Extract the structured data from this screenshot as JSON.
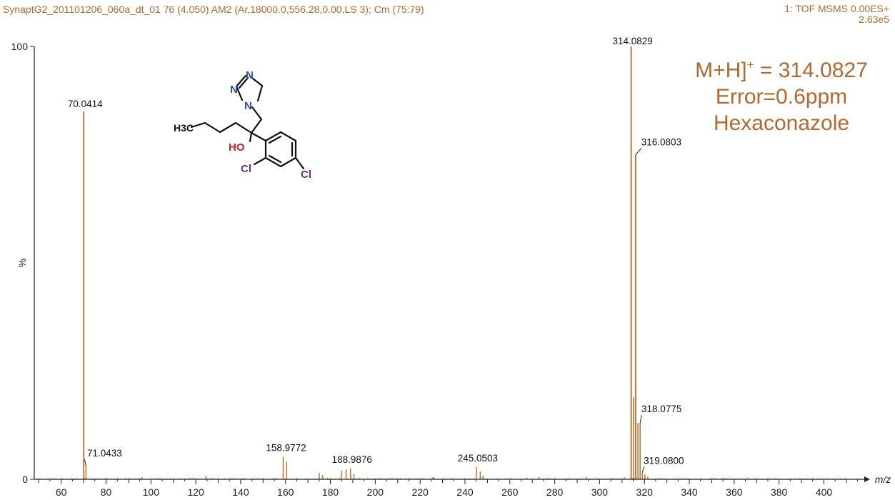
{
  "header": {
    "left_text": "SynaptG2_201101206_060a_dt_01 76 (4.050) AM2 (Ar,18000.0,556.28,0.00,LS 3); Cm (75:79)",
    "right_line1": "1: TOF MSMS 0.00ES+",
    "right_line2": "2.63e5"
  },
  "annotation": {
    "line1_main": "M+H]",
    "line1_sup": "+",
    "line1_rest": " = 314.0827",
    "line2": "Error=0.6ppm",
    "line3": "Hexaconazole"
  },
  "molecule": {
    "atoms": [
      "N",
      "N",
      "N",
      "H3C",
      "HO",
      "Cl",
      "Cl"
    ],
    "colors": {
      "nitrogen": "#2f4fb5",
      "oxygen": "#cc2222",
      "chlorine": "#6a2f8f",
      "carbon": "#111111"
    }
  },
  "colors": {
    "peak": "#c07a3e",
    "text_accent": "#b5682c",
    "axis": "#222222"
  },
  "chart_data": {
    "type": "bar",
    "title": "",
    "xlabel": "m/z",
    "ylabel": "%",
    "xlim": [
      48,
      418
    ],
    "ylim": [
      0,
      100
    ],
    "x_ticks": [
      60,
      80,
      100,
      120,
      140,
      160,
      180,
      200,
      220,
      240,
      260,
      280,
      300,
      320,
      340,
      360,
      380,
      400
    ],
    "y_ticks": [
      0,
      100
    ],
    "grid": false,
    "peaks": [
      {
        "mz": 70.0414,
        "intensity": 85,
        "label": "70.0414"
      },
      {
        "mz": 71.0433,
        "intensity": 3,
        "label": "71.0433"
      },
      {
        "mz": 158.9772,
        "intensity": 5.2,
        "label": "158.9772"
      },
      {
        "mz": 160.5,
        "intensity": 4
      },
      {
        "mz": 175,
        "intensity": 1.5
      },
      {
        "mz": 176.5,
        "intensity": 1
      },
      {
        "mz": 185,
        "intensity": 2
      },
      {
        "mz": 187,
        "intensity": 2.3
      },
      {
        "mz": 188.9876,
        "intensity": 2.5,
        "label": "188.9876"
      },
      {
        "mz": 190.5,
        "intensity": 1.2
      },
      {
        "mz": 245.0503,
        "intensity": 2.8,
        "label": "245.0503"
      },
      {
        "mz": 246.8,
        "intensity": 1.8
      },
      {
        "mz": 248,
        "intensity": 0.8
      },
      {
        "mz": 124.5,
        "intensity": 0.8
      },
      {
        "mz": 96,
        "intensity": 0.5
      },
      {
        "mz": 226,
        "intensity": 0.5
      },
      {
        "mz": 273,
        "intensity": 0.5
      },
      {
        "mz": 294,
        "intensity": 0.5
      },
      {
        "mz": 311,
        "intensity": 0.5
      },
      {
        "mz": 314.0829,
        "intensity": 100,
        "label": "314.0829"
      },
      {
        "mz": 315.1,
        "intensity": 19
      },
      {
        "mz": 316.0803,
        "intensity": 75,
        "label": "316.0803"
      },
      {
        "mz": 317.1,
        "intensity": 13
      },
      {
        "mz": 318.0775,
        "intensity": 13,
        "label": "318.0775"
      },
      {
        "mz": 319.08,
        "intensity": 1.6,
        "label": "319.0800"
      },
      {
        "mz": 320.2,
        "intensity": 1.2
      },
      {
        "mz": 321.5,
        "intensity": 0.6
      }
    ]
  }
}
